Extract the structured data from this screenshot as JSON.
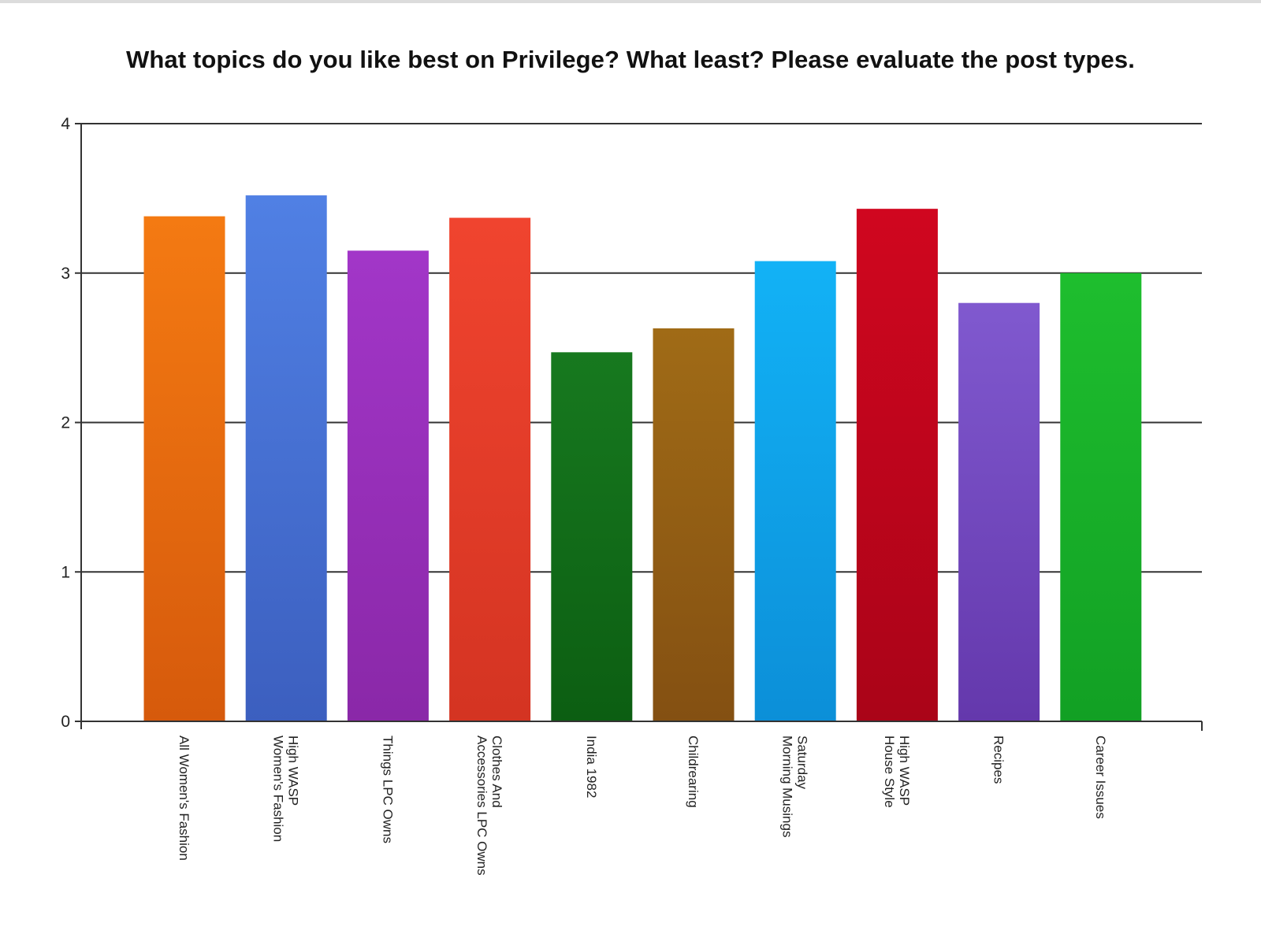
{
  "chart_data": {
    "type": "bar",
    "title": "What topics do you like best on Privilege? What least? Please evaluate the post types.",
    "xlabel": "",
    "ylabel": "",
    "ylim": [
      0,
      4
    ],
    "yticks": [
      0,
      1,
      2,
      3,
      4
    ],
    "grid": true,
    "legend": "none",
    "categories": [
      [
        "All Women's Fashion"
      ],
      [
        "High WASP",
        "Women's Fashion"
      ],
      [
        "Things LPC Owns"
      ],
      [
        "Clothes And",
        "Accessories LPC Owns"
      ],
      [
        "India 1982"
      ],
      [
        "Childrearing"
      ],
      [
        "Saturday",
        "Morning Musings"
      ],
      [
        "High WASP",
        "House Style"
      ],
      [
        "Recipes"
      ],
      [
        "Career Issues"
      ]
    ],
    "values": [
      3.38,
      3.52,
      3.15,
      3.37,
      2.47,
      2.63,
      3.08,
      3.43,
      2.8,
      3.0
    ],
    "colors": [
      [
        "#f47a12",
        "#d65a0c"
      ],
      [
        "#5080e4",
        "#3c5fbf"
      ],
      [
        "#a236c8",
        "#8a28a8"
      ],
      [
        "#f0442f",
        "#d43422"
      ],
      [
        "#17791f",
        "#0c5e12"
      ],
      [
        "#a06b16",
        "#845012"
      ],
      [
        "#12b2f6",
        "#0c8fd8"
      ],
      [
        "#d0061f",
        "#aa0418"
      ],
      [
        "#8059cf",
        "#6438ac"
      ],
      [
        "#1ebe2e",
        "#12a024"
      ]
    ]
  }
}
